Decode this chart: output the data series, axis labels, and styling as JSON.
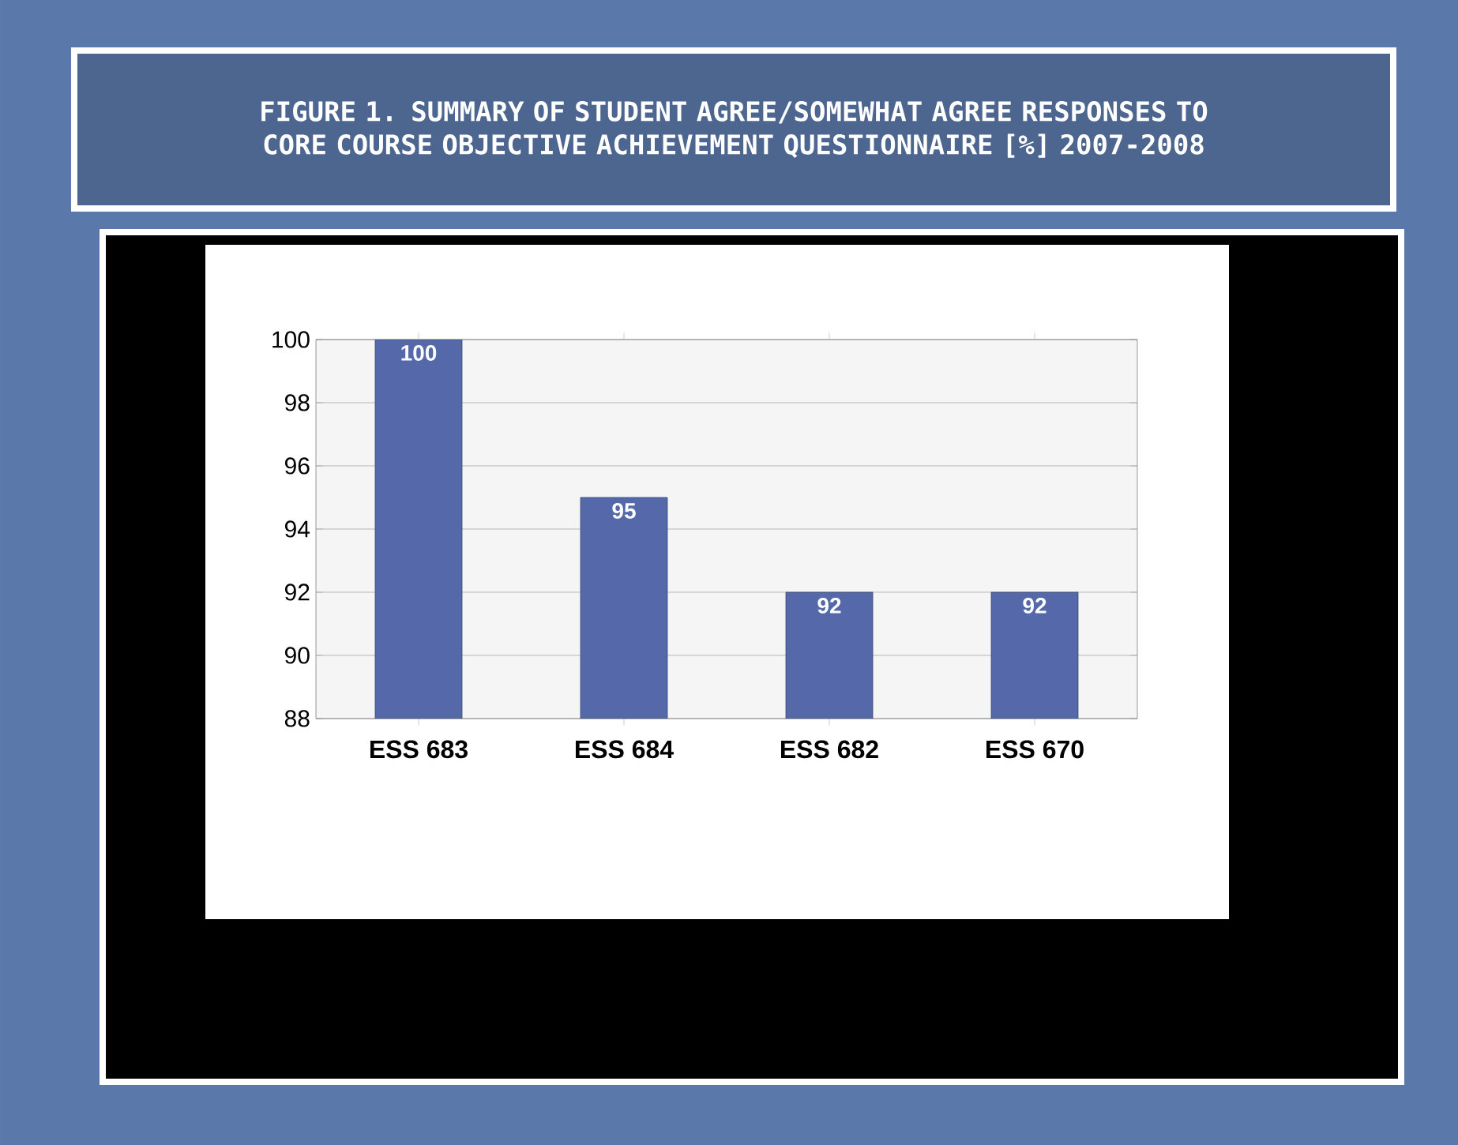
{
  "chart_data": {
    "type": "bar",
    "title": "FIGURE 1. SUMMARY OF STUDENT AGREE/SOMEWHAT AGREE RESPONSES TO CORE COURSE OBJECTIVE ACHIEVEMENT QUESTIONNAIRE [%] 2007-2008",
    "categories": [
      "ESS 683",
      "ESS 684",
      "ESS 682",
      "ESS 670"
    ],
    "values": [
      100,
      95,
      92,
      92
    ],
    "color": "#5468aa",
    "ylim": [
      88,
      100
    ],
    "yticks": [
      88,
      90,
      92,
      94,
      96,
      98,
      100
    ],
    "grid": "y",
    "data_labels": true
  }
}
